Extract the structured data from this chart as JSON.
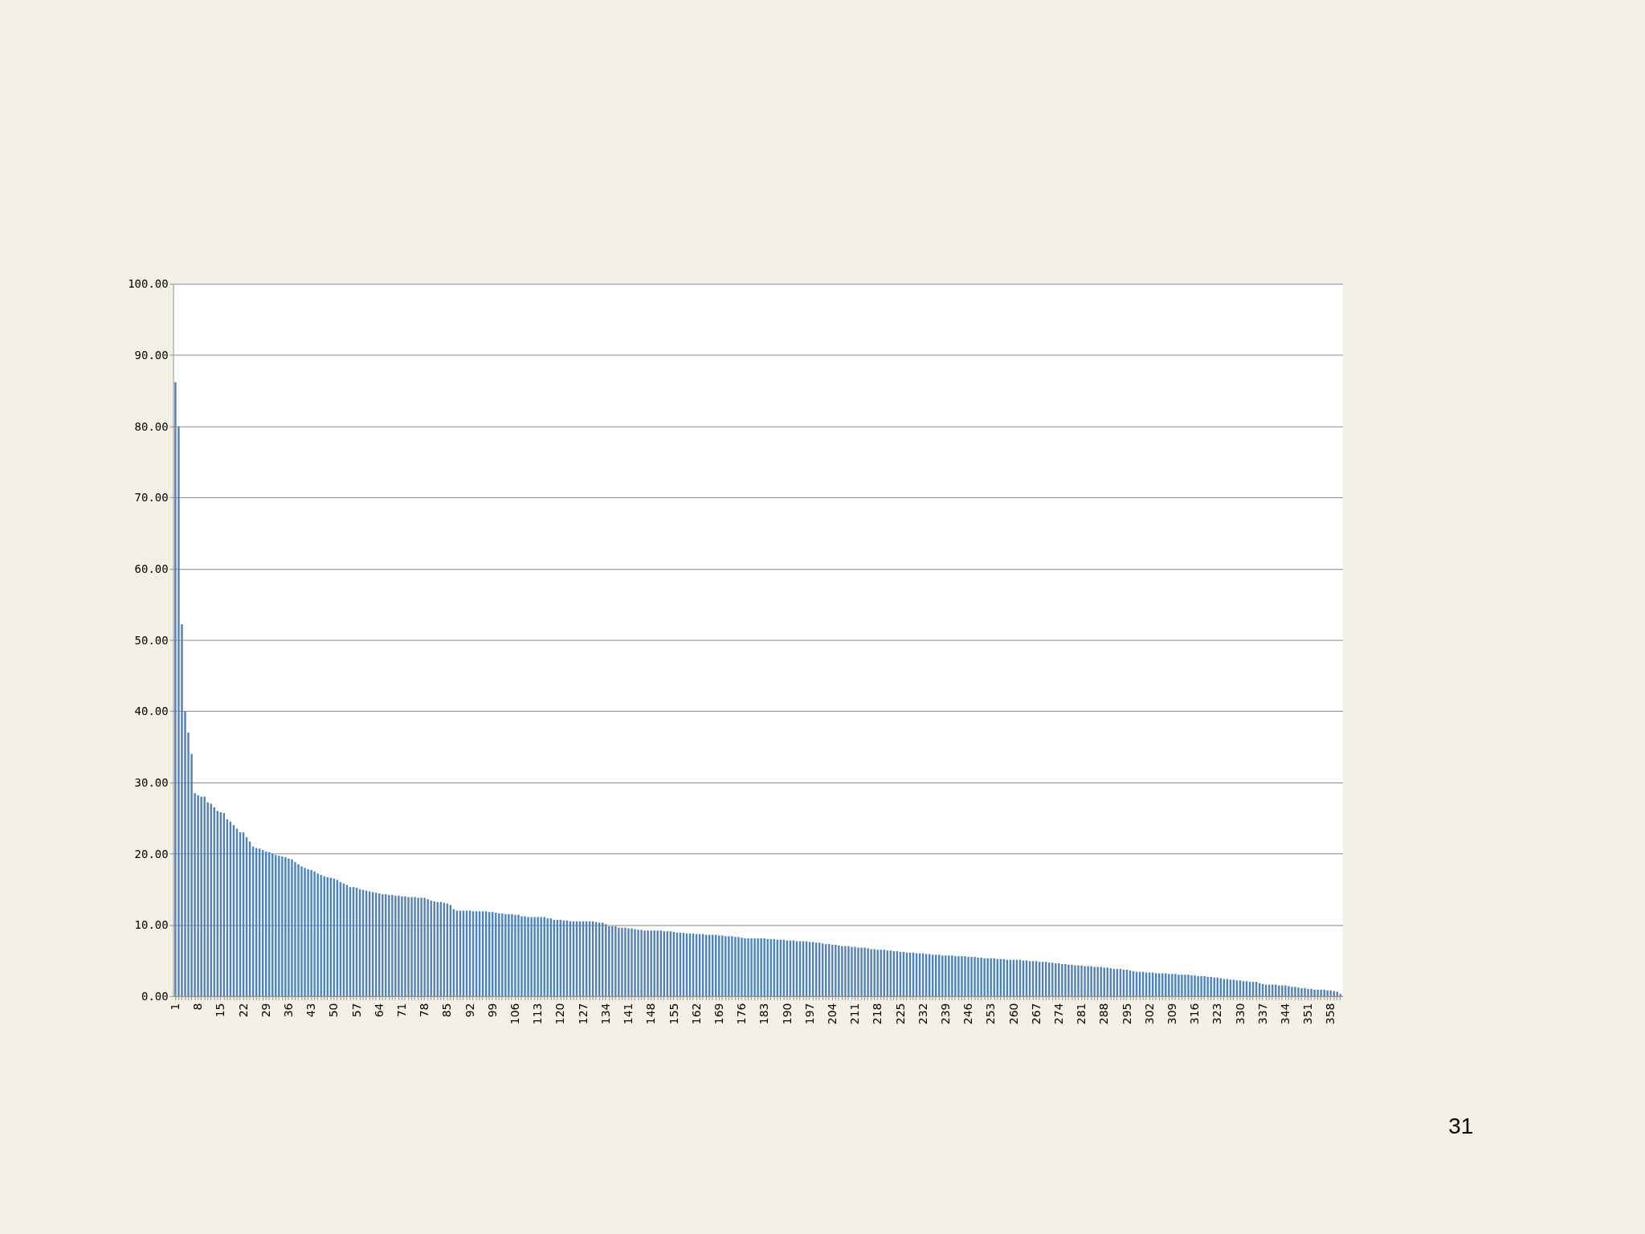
{
  "chart_data": {
    "type": "bar",
    "categories": [
      "1",
      null,
      null,
      null,
      null,
      null,
      null,
      "8",
      null,
      null,
      null,
      null,
      null,
      null,
      "15",
      null,
      null,
      null,
      null,
      null,
      null,
      "22",
      null,
      null,
      null,
      null,
      null,
      null,
      "29",
      null,
      null,
      null,
      null,
      null,
      null,
      "36",
      null,
      null,
      null,
      null,
      null,
      null,
      "43",
      null,
      null,
      null,
      null,
      null,
      null,
      "50",
      null,
      null,
      null,
      null,
      null,
      null,
      "57",
      null,
      null,
      null,
      null,
      null,
      null,
      "64",
      null,
      null,
      null,
      null,
      null,
      null,
      "71",
      null,
      null,
      null,
      null,
      null,
      null,
      "78",
      null,
      null,
      null,
      null,
      null,
      null,
      "85",
      null,
      null,
      null,
      null,
      null,
      null,
      "92",
      null,
      null,
      null,
      null,
      null,
      null,
      "99",
      null,
      null,
      null,
      null,
      null,
      null,
      "106",
      null,
      null,
      null,
      null,
      null,
      null,
      "113",
      null,
      null,
      null,
      null,
      null,
      null,
      "120",
      null,
      null,
      null,
      null,
      null,
      null,
      "127",
      null,
      null,
      null,
      null,
      null,
      null,
      "134",
      null,
      null,
      null,
      null,
      null,
      null,
      "141",
      null,
      null,
      null,
      null,
      null,
      null,
      "148",
      null,
      null,
      null,
      null,
      null,
      null,
      "155",
      null,
      null,
      null,
      null,
      null,
      null,
      "162",
      null,
      null,
      null,
      null,
      null,
      null,
      "169",
      null,
      null,
      null,
      null,
      null,
      null,
      "176",
      null,
      null,
      null,
      null,
      null,
      null,
      "183",
      null,
      null,
      null,
      null,
      null,
      null,
      "190",
      null,
      null,
      null,
      null,
      null,
      null,
      "197",
      null,
      null,
      null,
      null,
      null,
      null,
      "204",
      null,
      null,
      null,
      null,
      null,
      null,
      "211",
      null,
      null,
      null,
      null,
      null,
      null,
      "218",
      null,
      null,
      null,
      null,
      null,
      null,
      "225",
      null,
      null,
      null,
      null,
      null,
      null,
      "232",
      null,
      null,
      null,
      null,
      null,
      null,
      "239",
      null,
      null,
      null,
      null,
      null,
      null,
      "246",
      null,
      null,
      null,
      null,
      null,
      null,
      "253",
      null,
      null,
      null,
      null,
      null,
      null,
      "260",
      null,
      null,
      null,
      null,
      null,
      null,
      "267",
      null,
      null,
      null,
      null,
      null,
      null,
      "274",
      null,
      null,
      null,
      null,
      null,
      null,
      "281",
      null,
      null,
      null,
      null,
      null,
      null,
      "288",
      null,
      null,
      null,
      null,
      null,
      null,
      "295",
      null,
      null,
      null,
      null,
      null,
      null,
      "302",
      null,
      null,
      null,
      null,
      null,
      null,
      "309",
      null,
      null,
      null,
      null,
      null,
      null,
      "316",
      null,
      null,
      null,
      null,
      null,
      null,
      "323",
      null,
      null,
      null,
      null,
      null,
      null,
      "330",
      null,
      null,
      null,
      null,
      null,
      null,
      "337",
      null,
      null,
      null,
      null,
      null,
      null,
      "344",
      null,
      null,
      null,
      null,
      null,
      null,
      "351",
      null,
      null,
      null,
      null,
      null,
      null,
      "358",
      null,
      null,
      null
    ],
    "values": [
      86.2,
      80.0,
      52.2,
      40.0,
      37.0,
      34.0,
      28.5,
      28.2,
      28.0,
      28.0,
      27.2,
      27.0,
      26.5,
      26.0,
      25.8,
      25.7,
      24.8,
      24.5,
      24.0,
      23.5,
      23.0,
      23.0,
      22.3,
      21.7,
      21.0,
      20.8,
      20.7,
      20.5,
      20.3,
      20.2,
      20.0,
      19.8,
      19.7,
      19.6,
      19.5,
      19.3,
      19.2,
      18.8,
      18.5,
      18.2,
      18.0,
      17.8,
      17.7,
      17.5,
      17.2,
      17.0,
      16.8,
      16.7,
      16.6,
      16.5,
      16.3,
      16.0,
      15.8,
      15.6,
      15.3,
      15.3,
      15.2,
      15.0,
      14.9,
      14.8,
      14.7,
      14.6,
      14.5,
      14.4,
      14.3,
      14.3,
      14.2,
      14.2,
      14.1,
      14.1,
      14.0,
      14.0,
      13.9,
      13.9,
      13.9,
      13.8,
      13.8,
      13.8,
      13.6,
      13.4,
      13.3,
      13.2,
      13.2,
      13.1,
      13.0,
      12.8,
      12.2,
      12.0,
      12.0,
      12.0,
      12.0,
      12.0,
      11.9,
      11.9,
      11.9,
      11.9,
      11.9,
      11.8,
      11.8,
      11.7,
      11.6,
      11.6,
      11.5,
      11.5,
      11.5,
      11.4,
      11.4,
      11.2,
      11.2,
      11.1,
      11.1,
      11.1,
      11.1,
      11.1,
      11.1,
      10.9,
      10.9,
      10.7,
      10.7,
      10.7,
      10.6,
      10.6,
      10.5,
      10.5,
      10.5,
      10.5,
      10.5,
      10.5,
      10.5,
      10.5,
      10.4,
      10.3,
      10.3,
      10.1,
      9.8,
      9.8,
      9.8,
      9.6,
      9.6,
      9.6,
      9.5,
      9.5,
      9.4,
      9.3,
      9.3,
      9.2,
      9.2,
      9.2,
      9.2,
      9.2,
      9.2,
      9.1,
      9.1,
      9.1,
      9.0,
      8.9,
      8.9,
      8.9,
      8.8,
      8.8,
      8.8,
      8.7,
      8.7,
      8.7,
      8.6,
      8.6,
      8.6,
      8.6,
      8.5,
      8.5,
      8.4,
      8.4,
      8.4,
      8.3,
      8.3,
      8.2,
      8.1,
      8.1,
      8.1,
      8.1,
      8.1,
      8.1,
      8.1,
      8.0,
      8.0,
      8.0,
      7.9,
      7.9,
      7.9,
      7.8,
      7.8,
      7.8,
      7.7,
      7.7,
      7.7,
      7.7,
      7.6,
      7.6,
      7.5,
      7.5,
      7.4,
      7.3,
      7.3,
      7.2,
      7.2,
      7.1,
      7.0,
      7.0,
      7.0,
      6.9,
      6.9,
      6.8,
      6.8,
      6.8,
      6.7,
      6.6,
      6.6,
      6.5,
      6.5,
      6.5,
      6.4,
      6.4,
      6.3,
      6.3,
      6.2,
      6.2,
      6.1,
      6.1,
      6.1,
      6.0,
      6.0,
      6.0,
      5.9,
      5.9,
      5.8,
      5.8,
      5.8,
      5.7,
      5.7,
      5.7,
      5.7,
      5.6,
      5.6,
      5.6,
      5.6,
      5.5,
      5.5,
      5.5,
      5.4,
      5.4,
      5.3,
      5.3,
      5.3,
      5.3,
      5.2,
      5.2,
      5.2,
      5.1,
      5.1,
      5.1,
      5.1,
      5.1,
      5.0,
      5.0,
      4.9,
      4.9,
      4.9,
      4.8,
      4.8,
      4.8,
      4.7,
      4.7,
      4.6,
      4.6,
      4.5,
      4.5,
      4.4,
      4.4,
      4.3,
      4.3,
      4.3,
      4.2,
      4.2,
      4.2,
      4.1,
      4.1,
      4.1,
      4.0,
      4.0,
      3.9,
      3.8,
      3.8,
      3.8,
      3.7,
      3.7,
      3.6,
      3.5,
      3.4,
      3.4,
      3.4,
      3.3,
      3.3,
      3.3,
      3.2,
      3.2,
      3.2,
      3.2,
      3.1,
      3.1,
      3.1,
      3.0,
      3.0,
      3.0,
      3.0,
      2.9,
      2.9,
      2.8,
      2.8,
      2.8,
      2.7,
      2.7,
      2.6,
      2.6,
      2.5,
      2.4,
      2.4,
      2.3,
      2.3,
      2.2,
      2.2,
      2.1,
      2.1,
      2.0,
      2.0,
      2.0,
      1.8,
      1.7,
      1.6,
      1.6,
      1.6,
      1.6,
      1.5,
      1.5,
      1.5,
      1.4,
      1.3,
      1.3,
      1.2,
      1.1,
      1.1,
      1.0,
      1.0,
      0.9,
      0.9,
      0.9,
      0.9,
      0.8,
      0.8,
      0.7,
      0.6,
      0.3
    ],
    "color": "#4f81bd",
    "ylim": [
      0,
      100
    ],
    "yticks": [
      {
        "value": 0,
        "label": "0.00"
      },
      {
        "value": 10,
        "label": "10.00"
      },
      {
        "value": 20,
        "label": "20.00"
      },
      {
        "value": 30,
        "label": "30.00"
      },
      {
        "value": 40,
        "label": "40.00"
      },
      {
        "value": 50,
        "label": "50.00"
      },
      {
        "value": 60,
        "label": "60.00"
      },
      {
        "value": 70,
        "label": "70.00"
      },
      {
        "value": 80,
        "label": "80.00"
      },
      {
        "value": 90,
        "label": "90.00"
      },
      {
        "value": 100,
        "label": "100.00"
      }
    ],
    "grid": "y",
    "annotations": [
      "31"
    ]
  }
}
